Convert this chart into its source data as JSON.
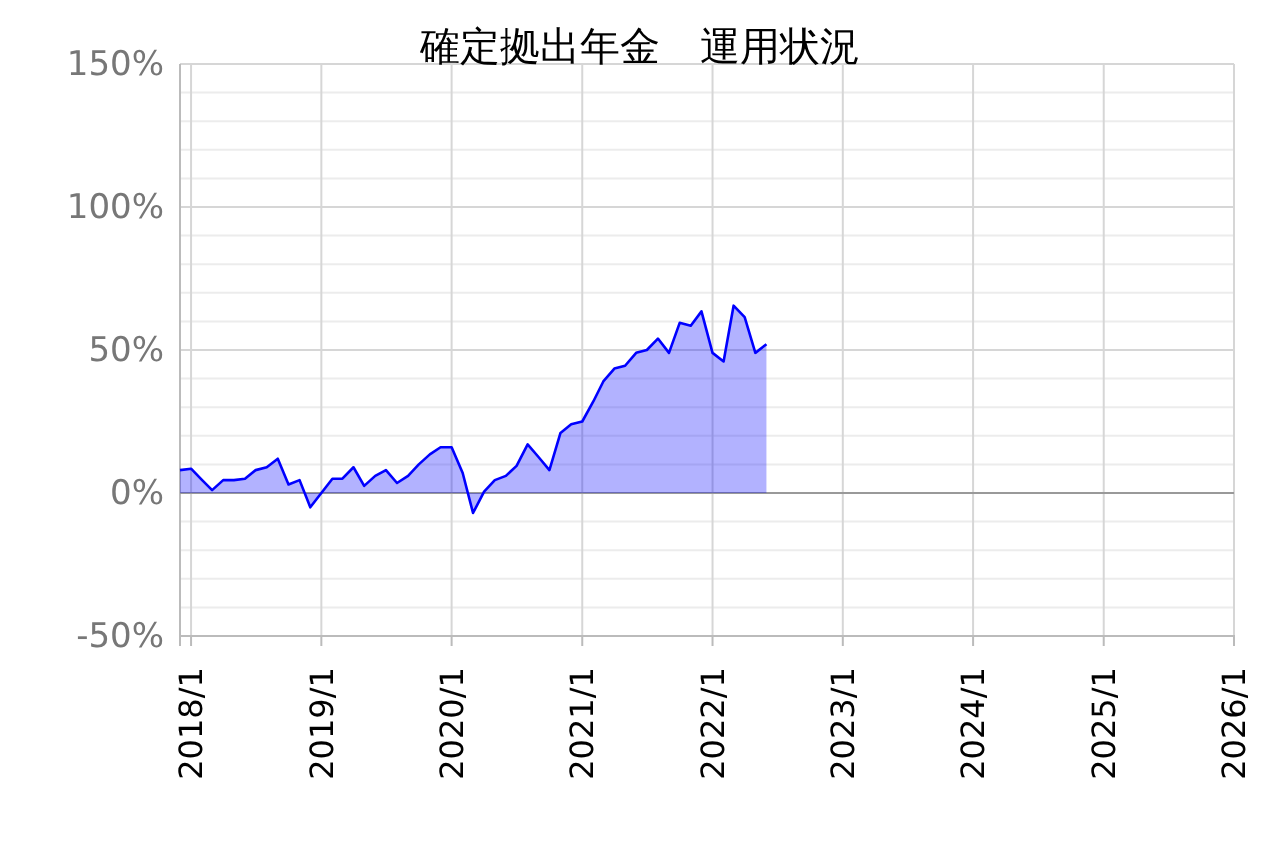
{
  "chart_data": {
    "type": "area",
    "title": "確定拠出年金　運用状況",
    "x": [
      "2017-12",
      "2018-01",
      "2018-02",
      "2018-03",
      "2018-04",
      "2018-05",
      "2018-06",
      "2018-07",
      "2018-08",
      "2018-09",
      "2018-10",
      "2018-11",
      "2018-12",
      "2019-01",
      "2019-02",
      "2019-03",
      "2019-04",
      "2019-05",
      "2019-06",
      "2019-07",
      "2019-08",
      "2019-09",
      "2019-10",
      "2019-11",
      "2019-12",
      "2020-01",
      "2020-02",
      "2020-03",
      "2020-04",
      "2020-05",
      "2020-06",
      "2020-07",
      "2020-08",
      "2020-09",
      "2020-10",
      "2020-11",
      "2020-12",
      "2021-01",
      "2021-02",
      "2021-03",
      "2021-04",
      "2021-05",
      "2021-06",
      "2021-07",
      "2021-08",
      "2021-09",
      "2021-10",
      "2021-11",
      "2021-12",
      "2022-01",
      "2022-02",
      "2022-03",
      "2022-04",
      "2022-05",
      "2022-06"
    ],
    "series": [
      {
        "color": "#0000ff",
        "values": [
          8,
          8.5,
          4.5,
          1,
          4.5,
          4.5,
          5,
          8,
          9,
          12,
          3,
          4.5,
          -5,
          0,
          5,
          5,
          9,
          2.5,
          6,
          8,
          3.5,
          6,
          10,
          13.5,
          16,
          16,
          7,
          -7,
          0.5,
          4.5,
          6,
          9.5,
          17,
          12.5,
          8,
          21,
          24,
          25,
          32,
          39,
          43.5,
          44.5,
          49,
          50,
          54,
          49,
          59.5,
          58.5,
          63.5,
          49,
          46,
          65.5,
          61.5,
          49,
          52
        ]
      }
    ],
    "xlim": [
      "2017-12",
      "2026-01"
    ],
    "xticks": [
      {
        "value": "2018-01",
        "label": "2018/1"
      },
      {
        "value": "2019-01",
        "label": "2019/1"
      },
      {
        "value": "2020-01",
        "label": "2020/1"
      },
      {
        "value": "2021-01",
        "label": "2021/1"
      },
      {
        "value": "2022-01",
        "label": "2022/1"
      },
      {
        "value": "2023-01",
        "label": "2023/1"
      },
      {
        "value": "2024-01",
        "label": "2024/1"
      },
      {
        "value": "2025-01",
        "label": "2025/1"
      },
      {
        "value": "2026-01",
        "label": "2026/1"
      }
    ],
    "ylim": [
      -50,
      150
    ],
    "yticks": [
      {
        "value": -50,
        "label": "-50%"
      },
      {
        "value": -40,
        "label": null
      },
      {
        "value": -30,
        "label": null
      },
      {
        "value": -20,
        "label": null
      },
      {
        "value": -10,
        "label": null
      },
      {
        "value": 0,
        "label": "0%"
      },
      {
        "value": 10,
        "label": null
      },
      {
        "value": 20,
        "label": null
      },
      {
        "value": 30,
        "label": null
      },
      {
        "value": 40,
        "label": null
      },
      {
        "value": 50,
        "label": "50%"
      },
      {
        "value": 60,
        "label": null
      },
      {
        "value": 70,
        "label": null
      },
      {
        "value": 80,
        "label": null
      },
      {
        "value": 90,
        "label": null
      },
      {
        "value": 100,
        "label": "100%"
      },
      {
        "value": 110,
        "label": null
      },
      {
        "value": 120,
        "label": null
      },
      {
        "value": 130,
        "label": null
      },
      {
        "value": 140,
        "label": null
      },
      {
        "value": 150,
        "label": "150%"
      }
    ],
    "grid": true,
    "marker": "none",
    "line_style": "solid"
  }
}
